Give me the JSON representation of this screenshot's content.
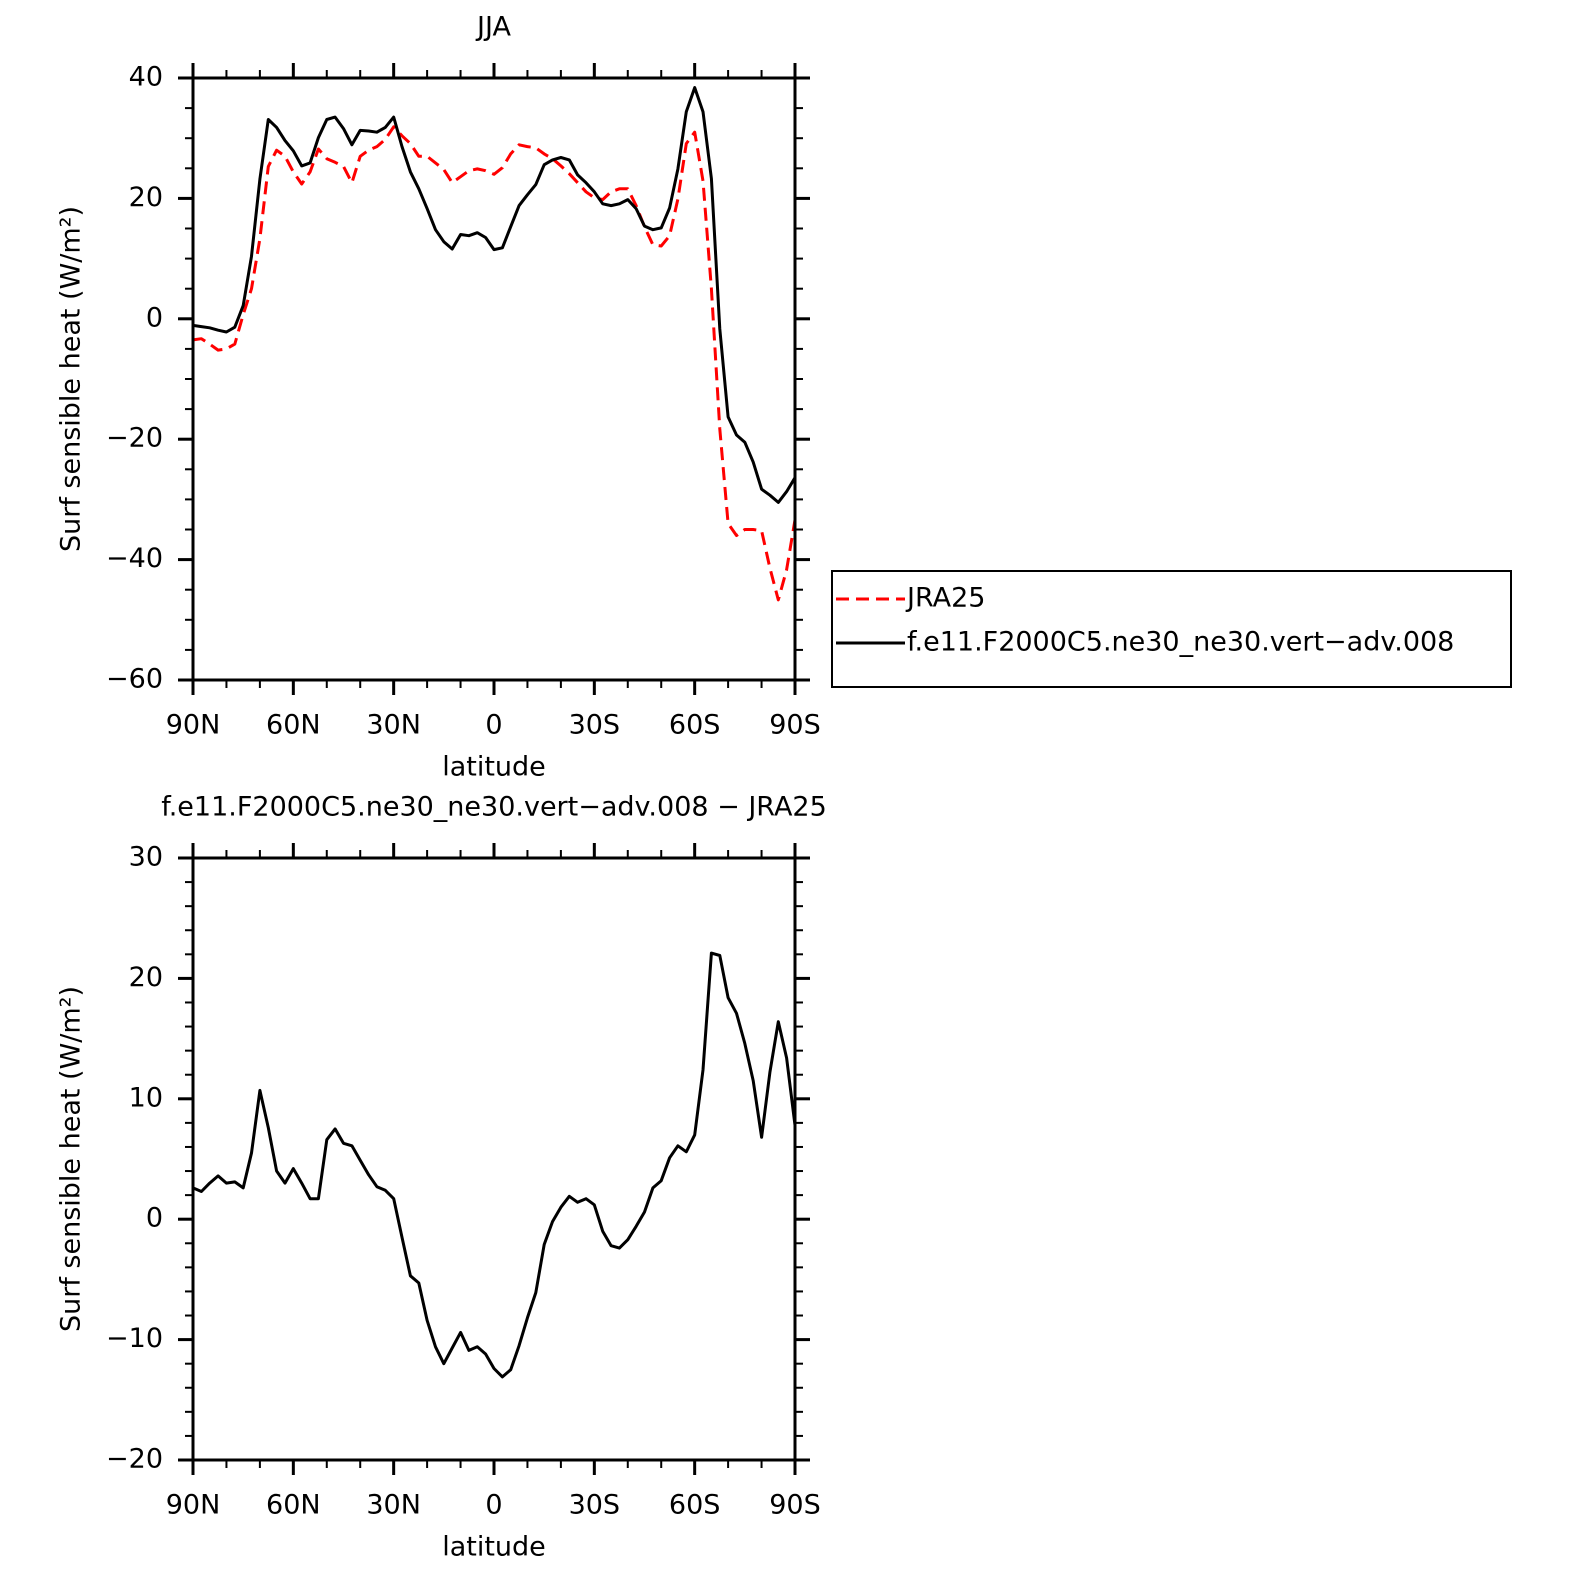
{
  "chart_data": [
    {
      "type": "line",
      "title": "JJA",
      "xlabel": "latitude",
      "ylabel": "Surf sensible heat (W/m²)",
      "x": [
        90,
        87.5,
        85,
        82.5,
        80,
        77.5,
        75,
        72.5,
        70,
        67.5,
        65,
        62.5,
        60,
        57.5,
        55,
        52.5,
        50,
        47.5,
        45,
        42.5,
        40,
        37.5,
        35,
        32.5,
        30,
        27.5,
        25,
        22.5,
        20,
        17.5,
        15,
        12.5,
        10,
        7.5,
        5,
        2.5,
        0,
        -2.5,
        -5,
        -7.5,
        -10,
        -12.5,
        -15,
        -17.5,
        -20,
        -22.5,
        -25,
        -27.5,
        -30,
        -32.5,
        -35,
        -37.5,
        -40,
        -42.5,
        -45,
        -47.5,
        -50,
        -52.5,
        -55,
        -57.5,
        -60,
        -62.5,
        -65,
        -67.5,
        -70,
        -72.5,
        -75,
        -77.5,
        -80,
        -82.5,
        -85,
        -87.5,
        -90
      ],
      "series": [
        {
          "name": "JRA25",
          "color": "#ff0000",
          "dash": true,
          "values": [
            -3.5,
            -3.3,
            -4.2,
            -5.2,
            -5.0,
            -4.2,
            0.7,
            5,
            13.3,
            25.3,
            28,
            27,
            24.4,
            22.4,
            24.4,
            28.2,
            26.6,
            26,
            25.3,
            22.6,
            27,
            28,
            28.6,
            29.8,
            31.9,
            30.4,
            29.1,
            27,
            27,
            25.9,
            24.8,
            22.6,
            23.6,
            24.6,
            24.9,
            24.6,
            24,
            25.1,
            27.4,
            28.9,
            28.6,
            28.4,
            27.4,
            26.6,
            25.4,
            24.1,
            22.6,
            21.1,
            20.1,
            19.8,
            21.1,
            21.6,
            21.6,
            18.8,
            15.3,
            12.3,
            12.1,
            13.8,
            19.9,
            29.1,
            31,
            22.9,
            5,
            -18.3,
            -34,
            -36,
            -35,
            -35,
            -35.2,
            -41.4,
            -46.7,
            -41.7,
            -33.4
          ]
        },
        {
          "name": "f.e11.F2000C5.ne30_ne30.vert−adv.008",
          "color": "#000000",
          "dash": false,
          "values": [
            -1.1,
            -1.3,
            -1.5,
            -1.9,
            -2.2,
            -1.4,
            2.2,
            10.4,
            23.2,
            33.1,
            31.8,
            29.6,
            27.9,
            25.4,
            25.9,
            30.1,
            33.1,
            33.5,
            31.6,
            28.9,
            31.3,
            31.2,
            31,
            31.8,
            33.5,
            28.6,
            24.4,
            21.6,
            18.3,
            14.8,
            12.8,
            11.6,
            14,
            13.8,
            14.3,
            13.5,
            11.5,
            11.8,
            15.3,
            18.8,
            20.6,
            22.3,
            25.6,
            26.4,
            26.8,
            26.4,
            23.9,
            22.6,
            21.1,
            19.1,
            18.8,
            19.1,
            19.8,
            18.3,
            15.4,
            14.8,
            15.1,
            18.4,
            24.9,
            34.4,
            38.4,
            34.4,
            23.3,
            -1.7,
            -16.3,
            -19.3,
            -20.5,
            -23.8,
            -28.3,
            -29.3,
            -30.5,
            -28.7,
            -26.4
          ]
        }
      ],
      "xlim": [
        90,
        -90
      ],
      "xticks": [
        {
          "value": 90,
          "label": "90N"
        },
        {
          "value": 60,
          "label": "60N"
        },
        {
          "value": 30,
          "label": "30N"
        },
        0,
        {
          "value": -30,
          "label": "30S"
        },
        {
          "value": -60,
          "label": "60S"
        },
        {
          "value": -90,
          "label": "90S"
        }
      ],
      "xminorticks": [
        80,
        70,
        50,
        40,
        20,
        10,
        -10,
        -20,
        -40,
        -50,
        -70,
        -80
      ],
      "ylim": [
        -60,
        40
      ],
      "yticks": [
        {
          "value": -60,
          "label": "−60"
        },
        {
          "value": -40,
          "label": "−40"
        },
        {
          "value": -20,
          "label": "−20"
        },
        0,
        20,
        40
      ],
      "yminorticks": [
        -55,
        -50,
        -45,
        -35,
        -30,
        -25,
        -15,
        -10,
        -5,
        5,
        10,
        15,
        25,
        30,
        35
      ],
      "legend": "right"
    },
    {
      "type": "line",
      "title": "f.e11.F2000C5.ne30_ne30.vert−adv.008 − JRA25",
      "xlabel": "latitude",
      "ylabel": "Surf sensible heat (W/m²)",
      "x": [
        90,
        87.5,
        85,
        82.5,
        80,
        77.5,
        75,
        72.5,
        70,
        67.5,
        65,
        62.5,
        60,
        57.5,
        55,
        52.5,
        50,
        47.5,
        45,
        42.5,
        40,
        37.5,
        35,
        32.5,
        30,
        27.5,
        25,
        22.5,
        20,
        17.5,
        15,
        12.5,
        10,
        7.5,
        5,
        2.5,
        0,
        -2.5,
        -5,
        -7.5,
        -10,
        -12.5,
        -15,
        -17.5,
        -20,
        -22.5,
        -25,
        -27.5,
        -30,
        -32.5,
        -35,
        -37.5,
        -40,
        -42.5,
        -45,
        -47.5,
        -50,
        -52.5,
        -55,
        -57.5,
        -60,
        -62.5,
        -65,
        -67.5,
        -70,
        -72.5,
        -75,
        -77.5,
        -80,
        -82.5,
        -85,
        -87.5,
        -90
      ],
      "color": "#000000",
      "values": [
        2.6,
        2.3,
        3,
        3.6,
        3,
        3.1,
        2.6,
        5.5,
        10.7,
        7.6,
        4,
        3,
        4.2,
        3,
        1.7,
        1.7,
        6.6,
        7.5,
        6.3,
        6.1,
        4.9,
        3.7,
        2.7,
        2.4,
        1.7,
        -1.5,
        -4.7,
        -5.3,
        -8.4,
        -10.6,
        -12,
        -10.7,
        -9.4,
        -10.9,
        -10.6,
        -11.2,
        -12.4,
        -13.1,
        -12.5,
        -10.5,
        -8.2,
        -6.1,
        -2.1,
        -0.2,
        1,
        1.9,
        1.4,
        1.7,
        1.2,
        -1,
        -2.2,
        -2.4,
        -1.7,
        -0.6,
        0.6,
        2.6,
        3.2,
        5.1,
        6.1,
        5.6,
        7,
        12.4,
        22.1,
        21.9,
        18.4,
        17.1,
        14.6,
        11.5,
        6.8,
        12.2,
        16.4,
        13.4,
        7.8
      ],
      "xlim": [
        90,
        -90
      ],
      "xticks": [
        {
          "value": 90,
          "label": "90N"
        },
        {
          "value": 60,
          "label": "60N"
        },
        {
          "value": 30,
          "label": "30N"
        },
        0,
        {
          "value": -30,
          "label": "30S"
        },
        {
          "value": -60,
          "label": "60S"
        },
        {
          "value": -90,
          "label": "90S"
        }
      ],
      "xminorticks": [
        80,
        70,
        50,
        40,
        20,
        10,
        -10,
        -20,
        -40,
        -50,
        -70,
        -80
      ],
      "ylim": [
        -20,
        30
      ],
      "yticks": [
        {
          "value": -20,
          "label": "−20"
        },
        {
          "value": -10,
          "label": "−10"
        },
        0,
        10,
        20,
        30
      ],
      "yminorticks": [
        -18,
        -16,
        -14,
        -12,
        -8,
        -6,
        -4,
        -2,
        2,
        4,
        6,
        8,
        12,
        14,
        16,
        18,
        22,
        24,
        26,
        28
      ]
    }
  ]
}
